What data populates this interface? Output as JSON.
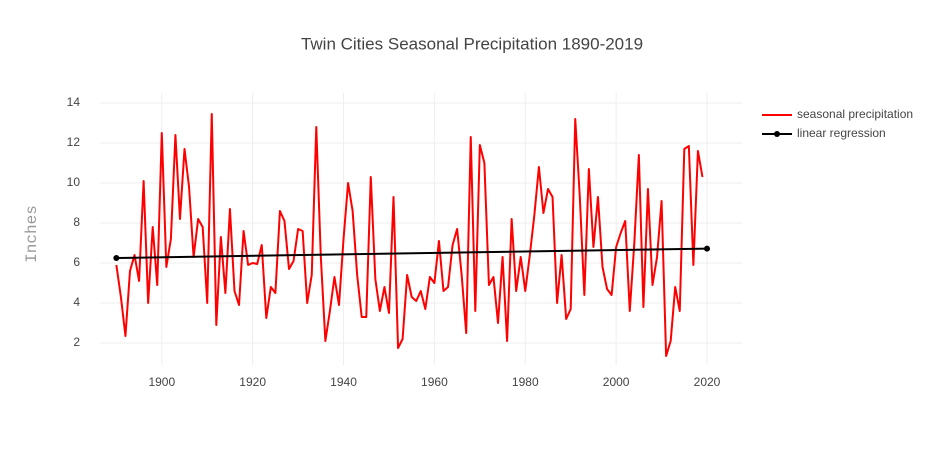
{
  "chart_data": {
    "type": "line",
    "title": "Twin Cities Seasonal Precipitation 1890-2019",
    "y_label": "Inches",
    "xlim": [
      1886.4,
      2027.7
    ],
    "xticks": [
      1900,
      1920,
      1940,
      1960,
      1980,
      2000,
      2020
    ],
    "ylim": [
      0.9,
      14.5
    ],
    "yticks": [
      2,
      4,
      6,
      8,
      10,
      12,
      14
    ],
    "grid": true,
    "legend": "top-right",
    "series": [
      {
        "name": "seasonal precipitation",
        "color": "#ff0000",
        "markers": false,
        "x": [
          1890,
          1891,
          1892,
          1893,
          1894,
          1895,
          1896,
          1897,
          1898,
          1899,
          1900,
          1901,
          1902,
          1903,
          1904,
          1905,
          1906,
          1907,
          1908,
          1909,
          1910,
          1911,
          1912,
          1913,
          1914,
          1915,
          1916,
          1917,
          1918,
          1919,
          1920,
          1921,
          1922,
          1923,
          1924,
          1925,
          1926,
          1927,
          1928,
          1929,
          1930,
          1931,
          1932,
          1933,
          1934,
          1935,
          1936,
          1937,
          1938,
          1939,
          1940,
          1941,
          1942,
          1943,
          1944,
          1945,
          1946,
          1947,
          1948,
          1949,
          1950,
          1951,
          1952,
          1953,
          1954,
          1955,
          1956,
          1957,
          1958,
          1959,
          1960,
          1961,
          1962,
          1963,
          1964,
          1965,
          1966,
          1967,
          1968,
          1969,
          1970,
          1971,
          1972,
          1973,
          1974,
          1975,
          1976,
          1977,
          1978,
          1979,
          1980,
          1981,
          1982,
          1983,
          1984,
          1985,
          1986,
          1987,
          1988,
          1989,
          1990,
          1991,
          1992,
          1993,
          1994,
          1995,
          1996,
          1997,
          1998,
          1999,
          2000,
          2001,
          2002,
          2003,
          2004,
          2005,
          2006,
          2007,
          2008,
          2009,
          2010,
          2011,
          2012,
          2013,
          2014,
          2015,
          2016,
          2017,
          2018,
          2019
        ],
        "values": [
          5.9,
          4.3,
          2.35,
          5.6,
          6.4,
          5.1,
          10.1,
          4.0,
          7.8,
          4.9,
          12.5,
          5.8,
          7.2,
          12.4,
          8.2,
          11.7,
          9.8,
          6.3,
          8.2,
          7.8,
          4.0,
          13.45,
          2.9,
          7.3,
          4.5,
          8.7,
          4.6,
          3.9,
          7.6,
          5.9,
          6.0,
          5.95,
          6.9,
          3.25,
          4.8,
          4.5,
          8.6,
          8.1,
          5.7,
          6.1,
          7.7,
          7.6,
          4.0,
          5.4,
          12.8,
          6.3,
          2.1,
          3.6,
          5.3,
          3.9,
          7.2,
          10.0,
          8.6,
          5.4,
          3.3,
          3.3,
          10.3,
          5.2,
          3.6,
          4.8,
          3.5,
          9.3,
          1.75,
          2.2,
          5.4,
          4.3,
          4.1,
          4.6,
          3.7,
          5.3,
          5.0,
          7.1,
          4.6,
          4.8,
          6.9,
          7.7,
          5.4,
          2.5,
          12.3,
          3.6,
          11.9,
          11.0,
          4.9,
          5.3,
          3.0,
          6.3,
          2.1,
          8.2,
          4.6,
          6.3,
          4.6,
          6.4,
          8.4,
          10.8,
          8.5,
          9.7,
          9.3,
          4.0,
          6.4,
          3.2,
          3.7,
          13.2,
          9.3,
          4.4,
          10.7,
          6.8,
          9.3,
          5.8,
          4.7,
          4.4,
          6.8,
          7.5,
          8.1,
          3.6,
          7.0,
          11.4,
          3.8,
          9.7,
          4.9,
          6.3,
          9.1,
          1.35,
          2.1,
          4.8,
          3.6,
          11.7,
          11.85,
          5.9,
          11.6,
          10.3
        ]
      },
      {
        "name": "linear regression",
        "color": "#000000",
        "markers": true,
        "x": [
          1890,
          2020
        ],
        "values": [
          6.25,
          6.72
        ]
      }
    ]
  }
}
